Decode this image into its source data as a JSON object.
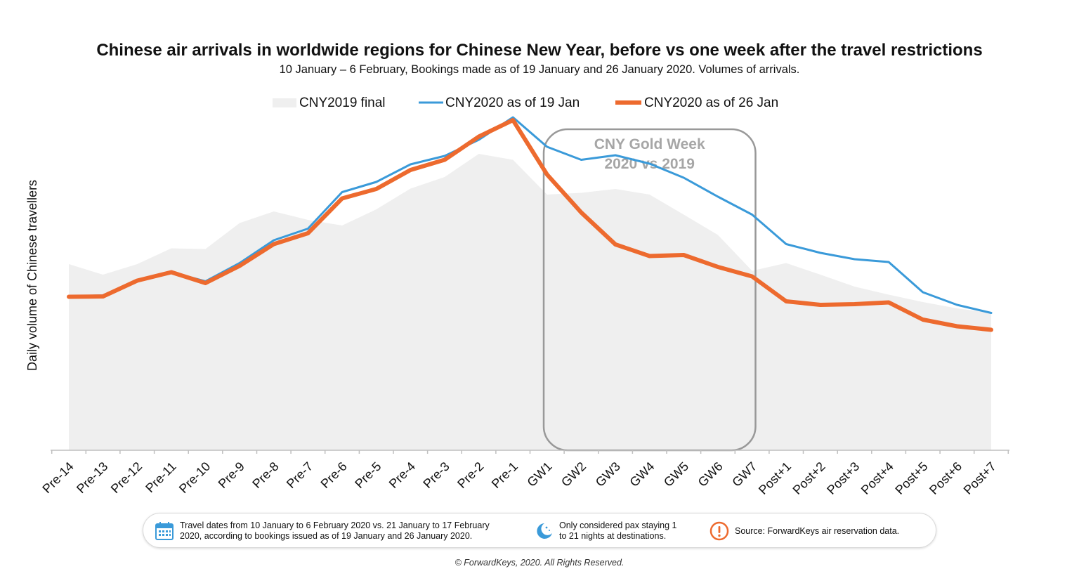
{
  "chart_data": {
    "type": "line",
    "title": "Chinese air arrivals in worldwide regions for Chinese New Year, before vs one week after the travel restrictions",
    "subtitle": "10 January – 6 February, Bookings made as of 19 January and 26 January 2020. Volumes of arrivals.",
    "ylabel": "Daily volume of Chinese travellers",
    "xlabel": "",
    "ylim": [
      0,
      100
    ],
    "grid": false,
    "legend_position": "top",
    "categories": [
      "Pre-14",
      "Pre-13",
      "Pre-12",
      "Pre-11",
      "Pre-10",
      "Pre-9",
      "Pre-8",
      "Pre-7",
      "Pre-6",
      "Pre-5",
      "Pre-4",
      "Pre-3",
      "Pre-2",
      "Pre-1",
      "GW1",
      "GW2",
      "GW3",
      "GW4",
      "GW5",
      "GW6",
      "GW7",
      "Post+1",
      "Post+2",
      "Post+3",
      "Post+4",
      "Post+5",
      "Post+6",
      "Post+7"
    ],
    "series": [
      {
        "name": "CNY2019 final",
        "style": "area",
        "color": "#efefef",
        "values": [
          53,
          50,
          53,
          57.5,
          57.3,
          64.7,
          68,
          65.6,
          64,
          68.6,
          74.5,
          77.8,
          84.4,
          82.7,
          72.8,
          73.3,
          74.4,
          72.8,
          67.1,
          61.3,
          51.1,
          53.3,
          50,
          46.6,
          44.3,
          42.2,
          40.4,
          39.1
        ]
      },
      {
        "name": "CNY2020 as of 19 Jan",
        "style": "line",
        "color": "#3a9ad9",
        "values": [
          43.8,
          44.1,
          48.4,
          50.7,
          48.1,
          53.3,
          59.8,
          63.1,
          73.5,
          76.4,
          81.4,
          83.8,
          88.4,
          94.8,
          86.4,
          82.7,
          84,
          81.6,
          77.6,
          72.2,
          67.1,
          58.7,
          56.2,
          54.4,
          53.6,
          45,
          41.4,
          39.1
        ]
      },
      {
        "name": "CNY2020 as of 26 Jan",
        "style": "line",
        "color": "#ed6a2e",
        "values": [
          43.7,
          43.8,
          48.3,
          50.7,
          47.6,
          52.5,
          58.7,
          61.8,
          71.7,
          74.4,
          79.8,
          82.7,
          89.3,
          94,
          78.5,
          67.7,
          58.6,
          55.3,
          55.6,
          52.2,
          49.5,
          42.4,
          41.4,
          41.6,
          42.1,
          37.2,
          35.3,
          34.3
        ]
      }
    ],
    "annotations": [
      {
        "text_lines": [
          "CNY Gold Week",
          "2020 vs 2019"
        ],
        "spans": [
          "GW1",
          "GW7"
        ]
      }
    ]
  },
  "footer": {
    "items": [
      {
        "icon": "calendar-icon",
        "lines": [
          "Travel dates from 10 January to 6 February 2020 vs. 21 January to 17 February",
          "2020, according to bookings issued as of 19 January and 26 January 2020."
        ]
      },
      {
        "icon": "moon-stars-icon",
        "lines": [
          "Only considered pax staying 1",
          "to 21 nights at destinations."
        ]
      },
      {
        "icon": "exclamation-icon",
        "lines": [
          "Source: ForwardKeys air reservation data."
        ]
      }
    ],
    "copyright": "© ForwardKeys, 2020. All Rights Reserved."
  },
  "colors": {
    "accent_blue": "#3a9ad9",
    "accent_orange": "#ed6a2e",
    "area_grey": "#efefef",
    "annotation_grey": "#a6a6a6"
  }
}
